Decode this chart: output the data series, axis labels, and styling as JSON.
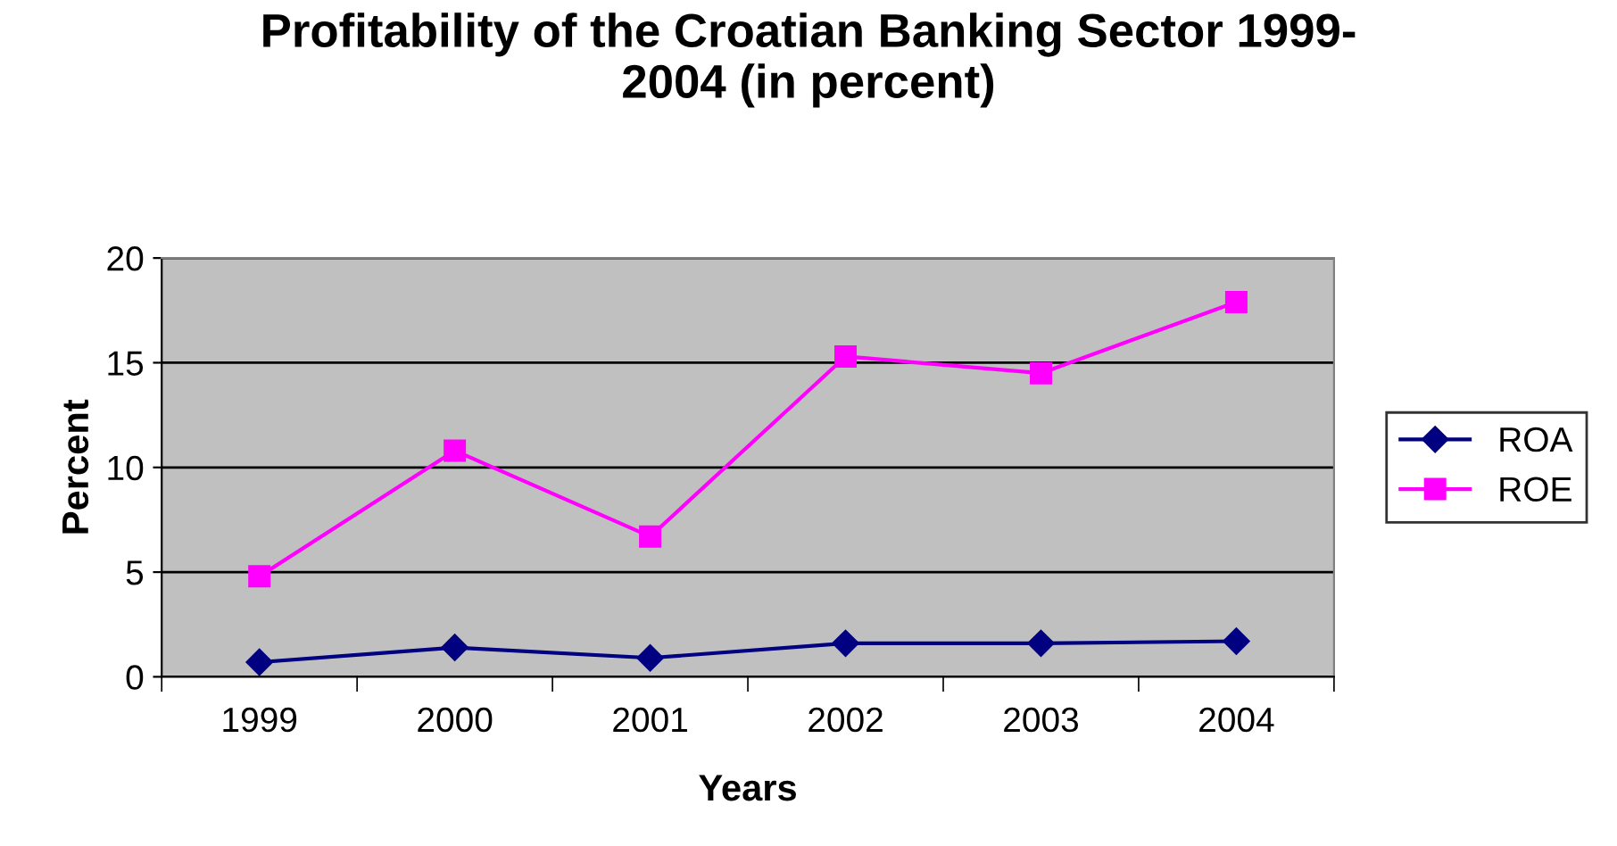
{
  "chart_data": {
    "type": "line",
    "title": "Profitability of the Croatian Banking Sector 1999-\n2004 (in percent)",
    "xlabel": "Years",
    "ylabel": "Percent",
    "categories": [
      "1999",
      "2000",
      "2001",
      "2002",
      "2003",
      "2004"
    ],
    "series": [
      {
        "name": "ROA",
        "color": "#000080",
        "marker": "diamond",
        "values": [
          0.7,
          1.4,
          0.9,
          1.6,
          1.6,
          1.7
        ]
      },
      {
        "name": "ROE",
        "color": "#ff00ff",
        "marker": "square",
        "values": [
          4.8,
          10.8,
          6.7,
          15.3,
          14.5,
          17.9
        ]
      }
    ],
    "ylim": [
      0,
      20
    ],
    "yticks": [
      0,
      5,
      10,
      15,
      20
    ],
    "grid": "y",
    "legend": "right",
    "line_style": "solid"
  }
}
